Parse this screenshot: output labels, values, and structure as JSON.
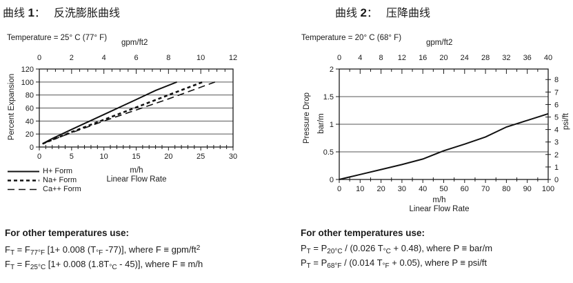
{
  "left_section": {
    "heading": {
      "prefix": "曲线 ",
      "number": "1",
      "separator": "：",
      "title": "反洗膨胀曲线"
    },
    "formulas": {
      "heading": "For other temperatures use:",
      "line1": [
        [
          "F",
          ""
        ],
        [
          "T",
          "s"
        ],
        [
          " = F",
          ""
        ],
        [
          "77°F",
          "s"
        ],
        [
          " [1+ 0.008 (T",
          ""
        ],
        [
          "°F",
          "s"
        ],
        [
          " -77)], where F ≡ gpm/ft",
          ""
        ],
        [
          "2",
          "p"
        ]
      ],
      "line2": [
        [
          "F",
          ""
        ],
        [
          "T",
          "s"
        ],
        [
          " = F",
          ""
        ],
        [
          "25°C",
          "s"
        ],
        [
          " [1+ 0.008 (1.8T",
          ""
        ],
        [
          "°C",
          "s"
        ],
        [
          " - 45)], where F ≡ m/h",
          ""
        ]
      ]
    }
  },
  "right_section": {
    "heading": {
      "prefix": "曲线 ",
      "number": "2",
      "separator": "：",
      "title": "压降曲线"
    },
    "formulas": {
      "heading": "For other temperatures use:",
      "line1": [
        [
          "P",
          ""
        ],
        [
          "T",
          "s"
        ],
        [
          " = P",
          ""
        ],
        [
          "20°C",
          "s"
        ],
        [
          " / (0.026 T",
          ""
        ],
        [
          "°C",
          "s"
        ],
        [
          " + 0.48), where P ≡ bar/m",
          ""
        ]
      ],
      "line2": [
        [
          "P",
          ""
        ],
        [
          "T",
          "s"
        ],
        [
          " = P",
          ""
        ],
        [
          "68°F",
          "s"
        ],
        [
          " / (0.014 T",
          ""
        ],
        [
          "°F",
          "s"
        ],
        [
          " + 0.05), where P ≡ psi/ft",
          ""
        ]
      ]
    }
  },
  "chart_data": [
    {
      "type": "line",
      "name": "Backwash Expansion Curve",
      "temperature_label": "Temperature = 25° C (77° F)",
      "top_axis": {
        "label": "gpm/ft2",
        "min": 0,
        "max": 12,
        "major_ticks": [
          0,
          2,
          4,
          6,
          8,
          10,
          12
        ],
        "minor_step": 0.5
      },
      "bottom_axis": {
        "unit": "m/h",
        "title": "Linear Flow Rate",
        "min": 0,
        "max": 30,
        "major_ticks": [
          0,
          5,
          10,
          15,
          20,
          25,
          30
        ],
        "minor_step": 1
      },
      "y_axis": {
        "label": "Percent Expansion",
        "min": 0,
        "max": 120,
        "ticks": [
          0,
          20,
          40,
          60,
          80,
          100,
          120
        ],
        "gridlines": [
          20,
          40,
          60,
          80,
          100
        ]
      },
      "legend_position": "bottom-left",
      "grid": true,
      "series": [
        {
          "name": "H+ Form",
          "dash": "solid",
          "x": [
            0.5,
            2,
            5,
            10,
            15,
            18,
            21.3
          ],
          "y": [
            5,
            13,
            27,
            50,
            73,
            87,
            100
          ]
        },
        {
          "name": "Na+ Form",
          "dash": "short-dash",
          "x": [
            0.5,
            2,
            5,
            10,
            15,
            20,
            25.3
          ],
          "y": [
            5,
            11,
            23,
            42,
            61,
            80,
            100
          ]
        },
        {
          "name": "Ca++ Form",
          "dash": "long-dash",
          "x": [
            0.5,
            2,
            5,
            10,
            15,
            20,
            27.2
          ],
          "y": [
            5,
            11,
            22,
            40,
            57,
            74,
            100
          ]
        }
      ]
    },
    {
      "type": "line",
      "name": "Pressure Drop Curve",
      "temperature_label": "Temperature = 20° C (68° F)",
      "top_axis": {
        "label": "gpm/ft2",
        "min": 0,
        "max": 40,
        "major_ticks": [
          0,
          4,
          8,
          12,
          16,
          20,
          24,
          28,
          32,
          36,
          40
        ],
        "minor_step": 2
      },
      "bottom_axis": {
        "unit": "m/h",
        "title": "Linear Flow Rate",
        "min": 0,
        "max": 100,
        "major_ticks": [
          0,
          10,
          20,
          30,
          40,
          50,
          60,
          70,
          80,
          90,
          100
        ],
        "minor_step": 5
      },
      "y_axis": {
        "label": "Pressure Drop",
        "unit": "bar/m",
        "min": 0,
        "max": 2,
        "ticks": [
          0,
          0.5,
          1,
          1.5,
          2
        ],
        "gridlines": [
          0.5,
          1,
          1.5
        ]
      },
      "right_axis": {
        "label": "psi/ft",
        "ticks": [
          0,
          1,
          2,
          3,
          4,
          5,
          6,
          7,
          8
        ],
        "left_units_per_unit": 0.2262
      },
      "grid": true,
      "series": [
        {
          "name": "Pressure Drop",
          "dash": "solid",
          "x": [
            0,
            10,
            20,
            30,
            40,
            50,
            60,
            70,
            80,
            90,
            100
          ],
          "y": [
            0,
            0.09,
            0.18,
            0.27,
            0.37,
            0.52,
            0.64,
            0.77,
            0.95,
            1.07,
            1.19
          ]
        }
      ]
    }
  ],
  "colors": {
    "ink": "#1a1a1a",
    "line": "#111111",
    "grid": "#555555"
  }
}
